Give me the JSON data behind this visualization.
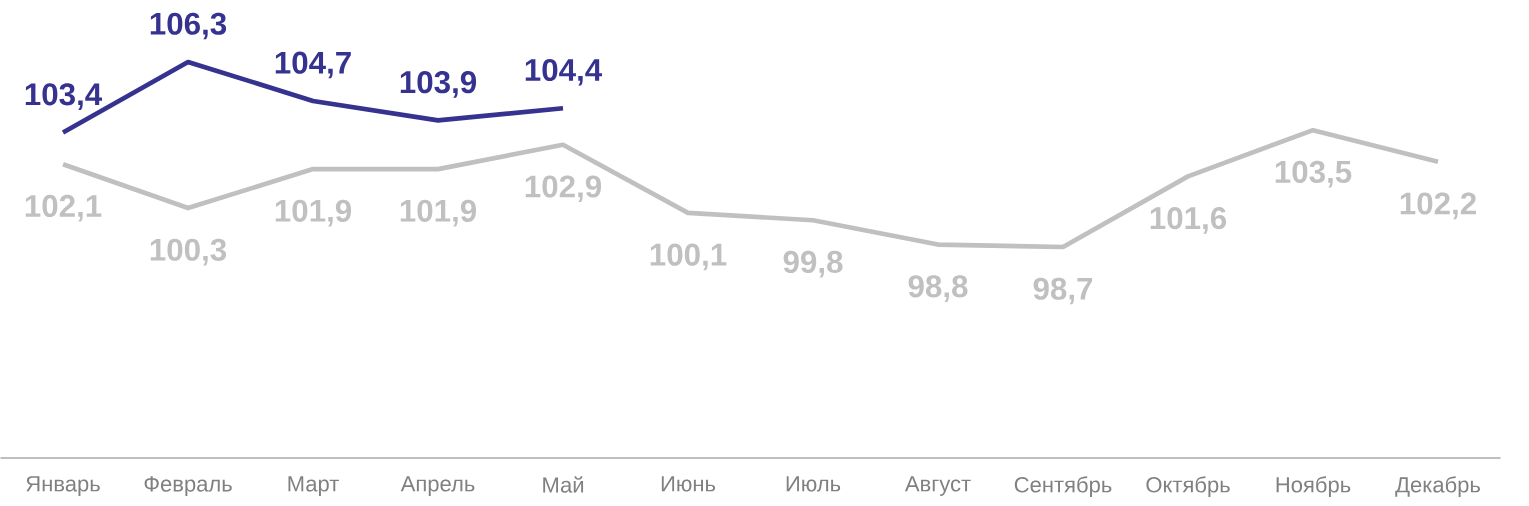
{
  "chart_data": {
    "type": "line",
    "categories": [
      "Январь",
      "Февраль",
      "Март",
      "Апрель",
      "Май",
      "Июнь",
      "Июль",
      "Август",
      "Сентябрь",
      "Октябрь",
      "Ноябрь",
      "Декабрь"
    ],
    "series": [
      {
        "color": "#c0c0c0",
        "values": [
          102.1,
          100.3,
          101.9,
          101.9,
          102.9,
          100.1,
          99.8,
          98.8,
          98.7,
          101.6,
          103.5,
          102.2
        ],
        "value_labels": [
          "102,1",
          "100,3",
          "101,9",
          "101,9",
          "102,9",
          "100,1",
          "99,8",
          "98,8",
          "98,7",
          "101,6",
          "103,5",
          "102,2"
        ]
      },
      {
        "color": "#35338f",
        "values": [
          103.4,
          106.3,
          104.7,
          103.9,
          104.4,
          null,
          null,
          null,
          null,
          null,
          null,
          null
        ],
        "value_labels": [
          "103,4",
          "106,3",
          "104,7",
          "103,9",
          "104,4",
          null,
          null,
          null,
          null,
          null,
          null,
          null
        ]
      }
    ],
    "grid": false,
    "marker": "none",
    "line_style": "solid"
  }
}
